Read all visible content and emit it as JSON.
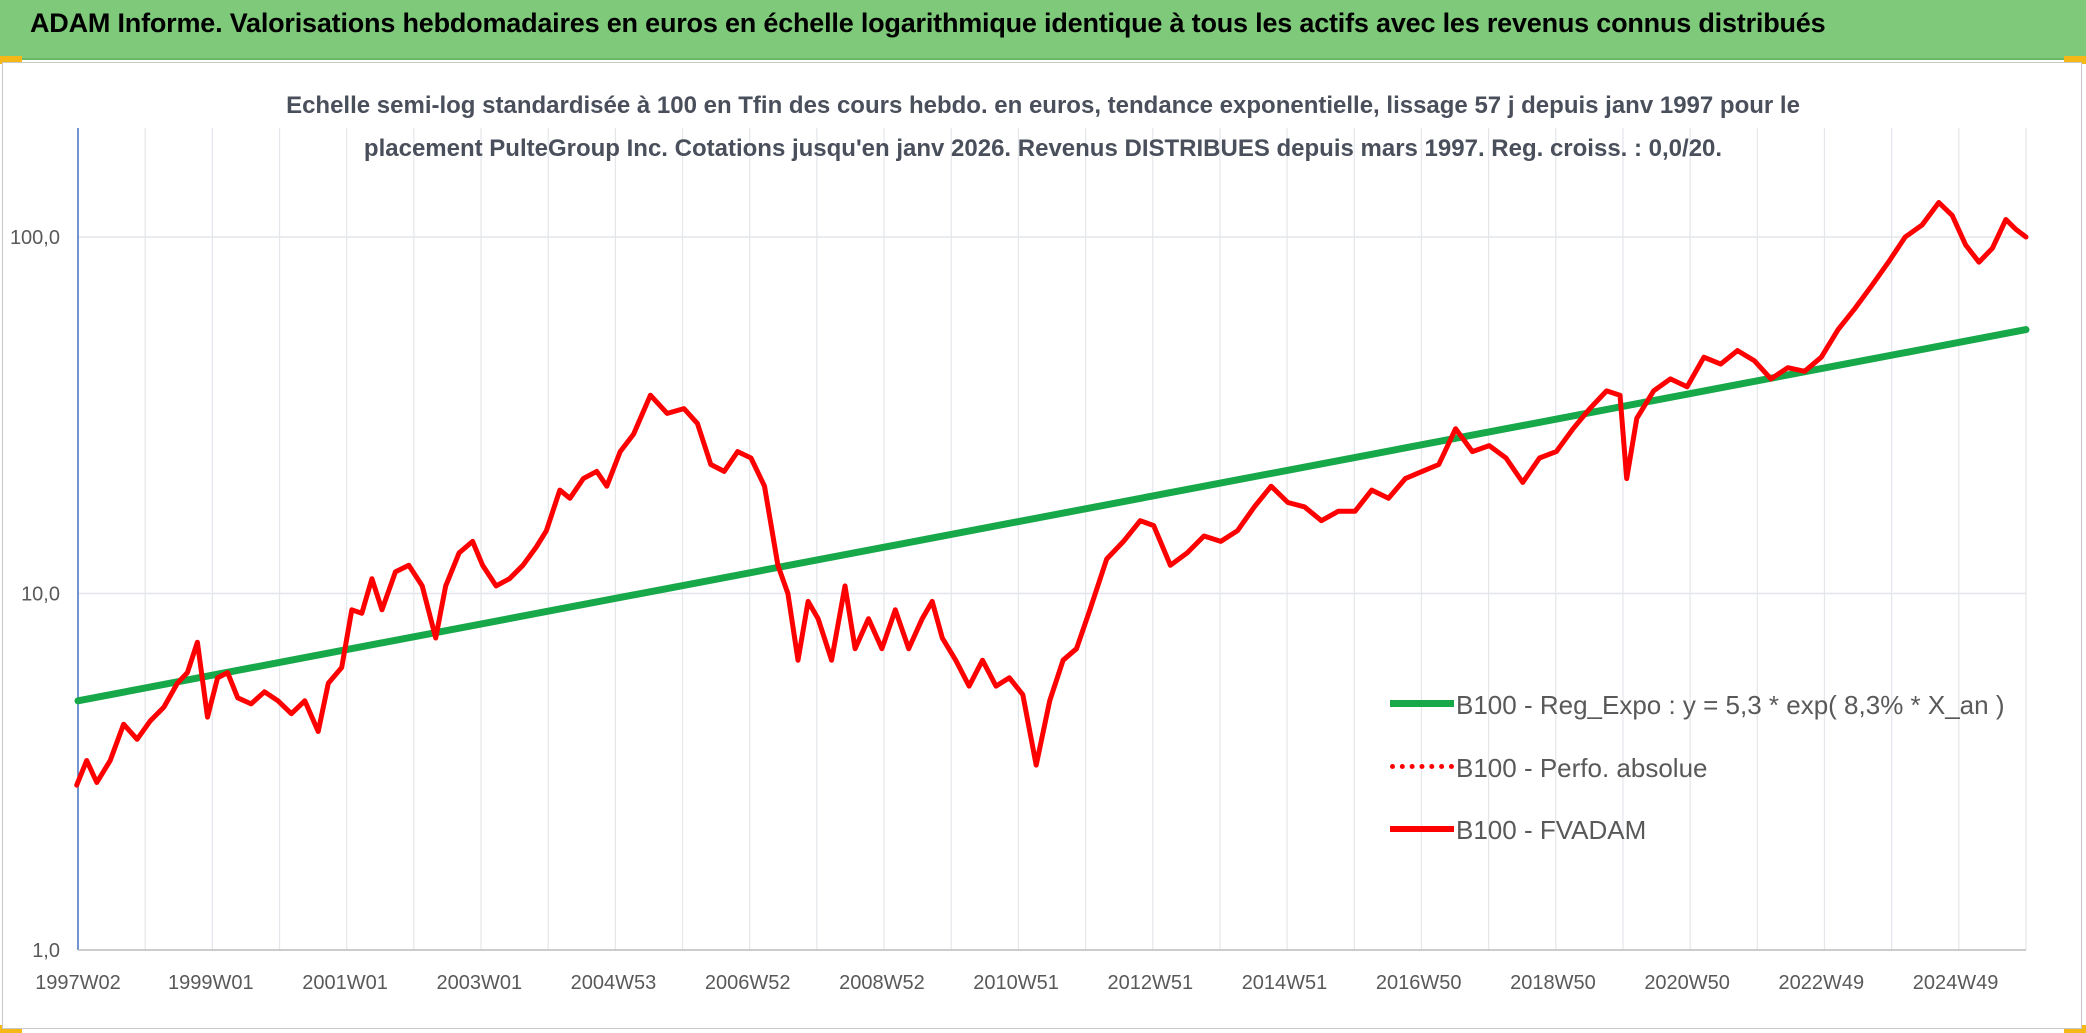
{
  "header": {
    "title": "ADAM Informe. Valorisations hebdomadaires en euros en échelle logarithmique identique à tous les actifs avec les revenus connus distribués"
  },
  "colors": {
    "header_bg": "#7ec97a",
    "corner_accent": "#f6b816",
    "regression": "#17a84a",
    "fvadam": "#ff0000",
    "grid": "#dfe3e8",
    "axis": "#4472c4",
    "text": "#595959"
  },
  "chart_data": {
    "type": "line",
    "subtitle_line1": "Echelle semi-log standardisée à 100 en Tfin des cours hebdo. en euros, tendance exponentielle, lissage 57 j depuis janv 1997 pour le",
    "subtitle_line2": "placement PulteGroup Inc. Cotations jusqu'en janv 2026. Revenus DISTRIBUES depuis mars 1997. Reg. croiss. : 0,0/20.",
    "y_scale": "log",
    "ylim": [
      1,
      180
    ],
    "y_ticks": [
      {
        "value": 1,
        "label": "1,0"
      },
      {
        "value": 10,
        "label": "10,0"
      },
      {
        "value": 100,
        "label": "100,0"
      }
    ],
    "x_range": [
      1997.02,
      2026.05
    ],
    "x_ticks": [
      {
        "x": 1997.02,
        "label": "1997W02"
      },
      {
        "x": 1999.0,
        "label": "1999W01"
      },
      {
        "x": 2001.0,
        "label": "2001W01"
      },
      {
        "x": 2003.0,
        "label": "2003W01"
      },
      {
        "x": 2005.0,
        "label": "2004W53"
      },
      {
        "x": 2007.0,
        "label": "2006W52"
      },
      {
        "x": 2009.0,
        "label": "2008W52"
      },
      {
        "x": 2011.0,
        "label": "2010W51"
      },
      {
        "x": 2013.0,
        "label": "2012W51"
      },
      {
        "x": 2015.0,
        "label": "2014W51"
      },
      {
        "x": 2017.0,
        "label": "2016W50"
      },
      {
        "x": 2019.0,
        "label": "2018W50"
      },
      {
        "x": 2021.0,
        "label": "2020W50"
      },
      {
        "x": 2023.0,
        "label": "2022W49"
      },
      {
        "x": 2025.0,
        "label": "2024W49"
      }
    ],
    "grid": "vertical and horizontal",
    "legend_position": "right-middle",
    "series": [
      {
        "name": "B100 - Reg_Expo : y = 5,3 * exp( 8,3% *  X_an )",
        "style": "solid-thick",
        "color": "#17a84a",
        "points": [
          [
            1997.02,
            5.0
          ],
          [
            2026.05,
            55.0
          ]
        ]
      },
      {
        "name": "B100 - Perfo. absolue",
        "style": "dotted",
        "color": "#ff0000",
        "points": []
      },
      {
        "name": "B100 - FVADAM",
        "style": "solid",
        "color": "#ff0000",
        "points": [
          [
            1997.0,
            2.9
          ],
          [
            1997.15,
            3.4
          ],
          [
            1997.3,
            2.95
          ],
          [
            1997.5,
            3.4
          ],
          [
            1997.7,
            4.3
          ],
          [
            1997.9,
            3.9
          ],
          [
            1998.1,
            4.4
          ],
          [
            1998.3,
            4.8
          ],
          [
            1998.5,
            5.6
          ],
          [
            1998.65,
            6.0
          ],
          [
            1998.8,
            7.3
          ],
          [
            1998.95,
            4.5
          ],
          [
            1999.1,
            5.8
          ],
          [
            1999.25,
            6.0
          ],
          [
            1999.4,
            5.1
          ],
          [
            1999.6,
            4.9
          ],
          [
            1999.8,
            5.3
          ],
          [
            2000.0,
            5.0
          ],
          [
            2000.2,
            4.6
          ],
          [
            2000.4,
            5.0
          ],
          [
            2000.6,
            4.1
          ],
          [
            2000.75,
            5.6
          ],
          [
            2000.95,
            6.2
          ],
          [
            2001.1,
            9.0
          ],
          [
            2001.25,
            8.8
          ],
          [
            2001.4,
            11.0
          ],
          [
            2001.55,
            9.0
          ],
          [
            2001.75,
            11.5
          ],
          [
            2001.95,
            12.0
          ],
          [
            2002.15,
            10.5
          ],
          [
            2002.35,
            7.5
          ],
          [
            2002.5,
            10.5
          ],
          [
            2002.7,
            13.0
          ],
          [
            2002.9,
            14.0
          ],
          [
            2003.05,
            12.0
          ],
          [
            2003.25,
            10.5
          ],
          [
            2003.45,
            11.0
          ],
          [
            2003.65,
            12.0
          ],
          [
            2003.85,
            13.5
          ],
          [
            2004.0,
            15.0
          ],
          [
            2004.2,
            19.5
          ],
          [
            2004.35,
            18.5
          ],
          [
            2004.55,
            21.0
          ],
          [
            2004.75,
            22.0
          ],
          [
            2004.9,
            20.0
          ],
          [
            2005.1,
            25.0
          ],
          [
            2005.3,
            28.0
          ],
          [
            2005.55,
            36.0
          ],
          [
            2005.8,
            32.0
          ],
          [
            2006.05,
            33.0
          ],
          [
            2006.25,
            30.0
          ],
          [
            2006.45,
            23.0
          ],
          [
            2006.65,
            22.0
          ],
          [
            2006.85,
            25.0
          ],
          [
            2007.05,
            24.0
          ],
          [
            2007.25,
            20.0
          ],
          [
            2007.45,
            12.0
          ],
          [
            2007.6,
            10.0
          ],
          [
            2007.75,
            6.5
          ],
          [
            2007.9,
            9.5
          ],
          [
            2008.05,
            8.5
          ],
          [
            2008.25,
            6.5
          ],
          [
            2008.45,
            10.5
          ],
          [
            2008.6,
            7.0
          ],
          [
            2008.8,
            8.5
          ],
          [
            2009.0,
            7.0
          ],
          [
            2009.2,
            9.0
          ],
          [
            2009.4,
            7.0
          ],
          [
            2009.6,
            8.5
          ],
          [
            2009.75,
            9.5
          ],
          [
            2009.9,
            7.5
          ],
          [
            2010.1,
            6.5
          ],
          [
            2010.3,
            5.5
          ],
          [
            2010.5,
            6.5
          ],
          [
            2010.7,
            5.5
          ],
          [
            2010.9,
            5.8
          ],
          [
            2011.1,
            5.2
          ],
          [
            2011.3,
            3.3
          ],
          [
            2011.5,
            5.0
          ],
          [
            2011.7,
            6.5
          ],
          [
            2011.9,
            7.0
          ],
          [
            2012.1,
            9.0
          ],
          [
            2012.35,
            12.5
          ],
          [
            2012.6,
            14.0
          ],
          [
            2012.85,
            16.0
          ],
          [
            2013.05,
            15.5
          ],
          [
            2013.3,
            12.0
          ],
          [
            2013.55,
            13.0
          ],
          [
            2013.8,
            14.5
          ],
          [
            2014.05,
            14.0
          ],
          [
            2014.3,
            15.0
          ],
          [
            2014.55,
            17.5
          ],
          [
            2014.8,
            20.0
          ],
          [
            2015.05,
            18.0
          ],
          [
            2015.3,
            17.5
          ],
          [
            2015.55,
            16.0
          ],
          [
            2015.8,
            17.0
          ],
          [
            2016.05,
            17.0
          ],
          [
            2016.3,
            19.5
          ],
          [
            2016.55,
            18.5
          ],
          [
            2016.8,
            21.0
          ],
          [
            2017.05,
            22.0
          ],
          [
            2017.3,
            23.0
          ],
          [
            2017.55,
            29.0
          ],
          [
            2017.8,
            25.0
          ],
          [
            2018.05,
            26.0
          ],
          [
            2018.3,
            24.0
          ],
          [
            2018.55,
            20.5
          ],
          [
            2018.8,
            24.0
          ],
          [
            2019.05,
            25.0
          ],
          [
            2019.3,
            29.0
          ],
          [
            2019.55,
            33.0
          ],
          [
            2019.8,
            37.0
          ],
          [
            2020.0,
            36.0
          ],
          [
            2020.1,
            21.0
          ],
          [
            2020.25,
            31.0
          ],
          [
            2020.5,
            37.0
          ],
          [
            2020.75,
            40.0
          ],
          [
            2021.0,
            38.0
          ],
          [
            2021.25,
            46.0
          ],
          [
            2021.5,
            44.0
          ],
          [
            2021.75,
            48.0
          ],
          [
            2022.0,
            45.0
          ],
          [
            2022.25,
            40.0
          ],
          [
            2022.5,
            43.0
          ],
          [
            2022.75,
            42.0
          ],
          [
            2023.0,
            46.0
          ],
          [
            2023.25,
            55.0
          ],
          [
            2023.5,
            63.0
          ],
          [
            2023.75,
            73.0
          ],
          [
            2024.0,
            85.0
          ],
          [
            2024.25,
            100.0
          ],
          [
            2024.5,
            108.0
          ],
          [
            2024.75,
            125.0
          ],
          [
            2024.95,
            115.0
          ],
          [
            2025.15,
            95.0
          ],
          [
            2025.35,
            85.0
          ],
          [
            2025.55,
            93.0
          ],
          [
            2025.75,
            112.0
          ],
          [
            2025.9,
            105.0
          ],
          [
            2026.05,
            100.0
          ]
        ]
      }
    ]
  }
}
